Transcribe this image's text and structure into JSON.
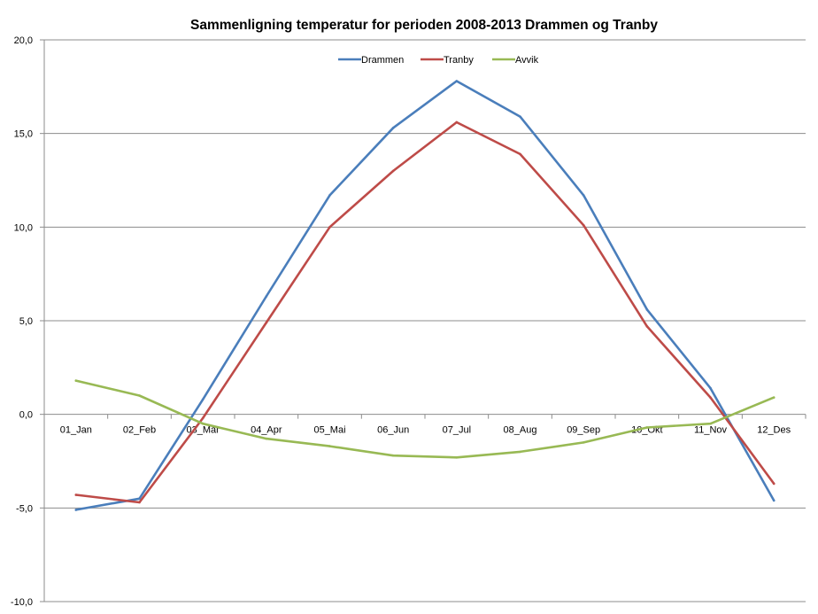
{
  "chart_data": {
    "type": "line",
    "title": "Sammenligning temperatur for perioden 2008-2013 Drammen og Tranby",
    "xlabel": "",
    "ylabel": "",
    "categories": [
      "01_Jan",
      "02_Feb",
      "03_Mar",
      "04_Apr",
      "05_Mai",
      "06_Jun",
      "07_Jul",
      "08_Aug",
      "09_Sep",
      "10_Okt",
      "11_Nov",
      "12_Des"
    ],
    "ylim": [
      -10,
      20
    ],
    "yticks": [
      {
        "value": -10,
        "label": "-10,0",
        "color": "#c00000"
      },
      {
        "value": -5,
        "label": "-5,0",
        "color": "#c00000"
      },
      {
        "value": 0,
        "label": "0,0",
        "color": "#000000"
      },
      {
        "value": 5,
        "label": "5,0",
        "color": "#000000"
      },
      {
        "value": 10,
        "label": "10,0",
        "color": "#000000"
      },
      {
        "value": 15,
        "label": "15,0",
        "color": "#000000"
      },
      {
        "value": 20,
        "label": "20,0",
        "color": "#000000"
      }
    ],
    "grid": true,
    "legend_position": "top-center",
    "series": [
      {
        "name": "Drammen",
        "color": "#4a7ebb",
        "values": [
          -5.1,
          -4.5,
          0.8,
          6.3,
          11.7,
          15.3,
          17.8,
          15.9,
          11.7,
          5.6,
          1.4,
          -4.6
        ]
      },
      {
        "name": "Tranby",
        "color": "#be4b48",
        "values": [
          -4.3,
          -4.7,
          -0.2,
          4.9,
          10.0,
          13.0,
          15.6,
          13.9,
          10.1,
          4.7,
          0.9,
          -3.7
        ]
      },
      {
        "name": "Avvik",
        "color": "#98b954",
        "values": [
          1.8,
          1.0,
          -0.5,
          -1.3,
          -1.7,
          -2.2,
          -2.3,
          -2.0,
          -1.5,
          -0.7,
          -0.5,
          0.9
        ]
      }
    ]
  }
}
